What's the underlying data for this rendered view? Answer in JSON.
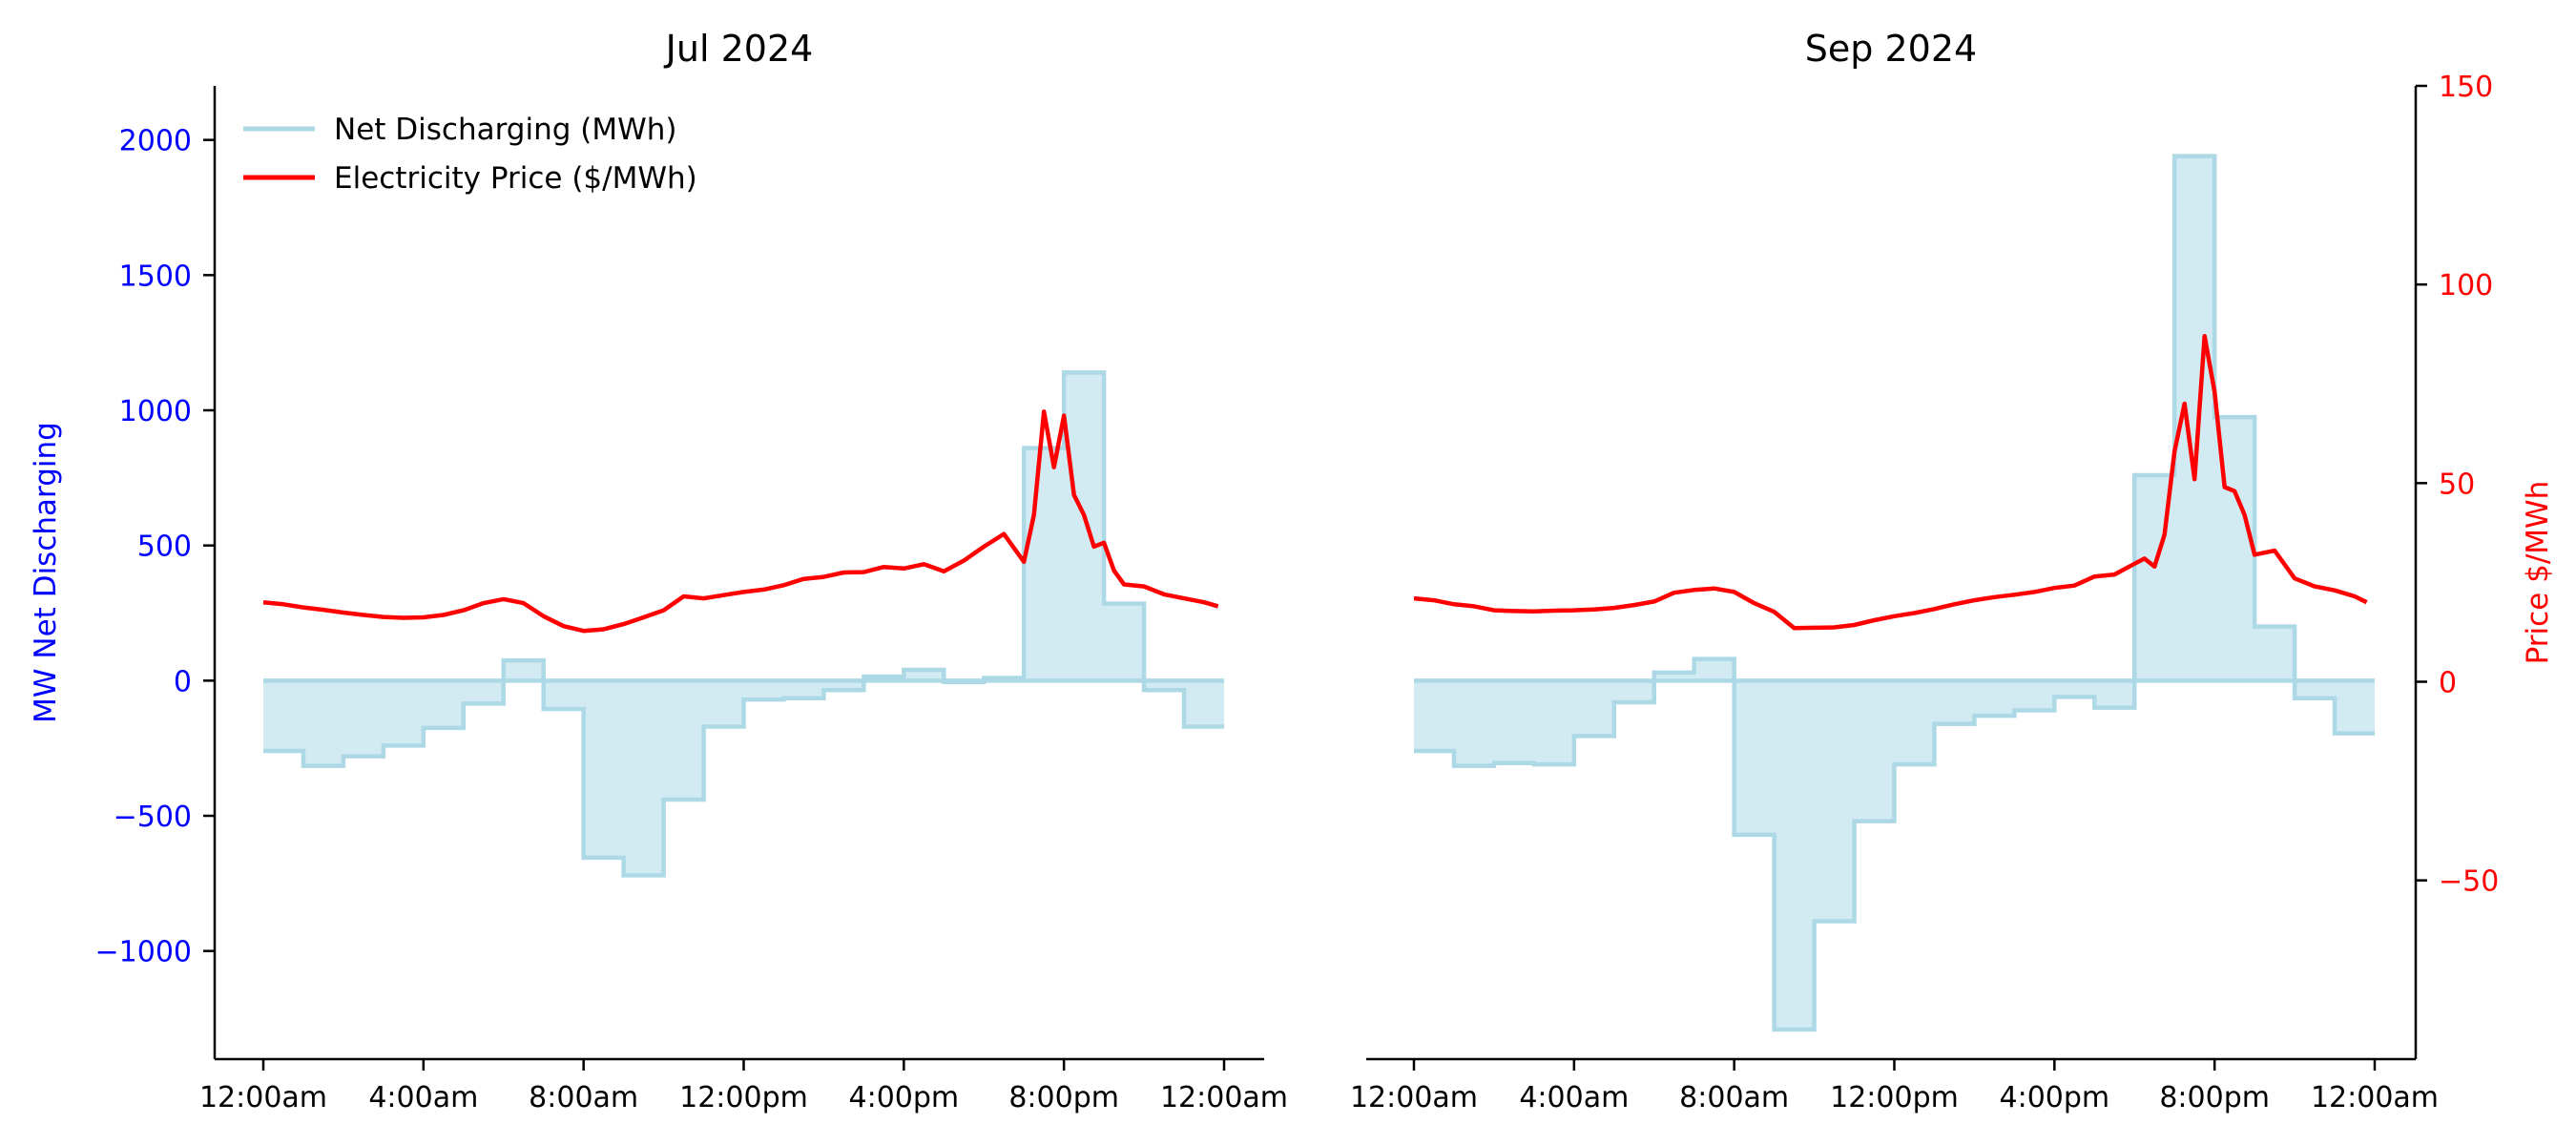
{
  "chart_data": {
    "type": "area-step-with-line",
    "left_axis": {
      "label": "MW Net Discharging",
      "color": "#0000ff",
      "range": [
        -1400,
        2200
      ],
      "ticks": [
        -1000,
        -500,
        0,
        500,
        1000,
        1500,
        2000
      ],
      "tick_labels": [
        "−1000",
        "−500",
        "0",
        "500",
        "1000",
        "1500",
        "2000"
      ]
    },
    "right_axis": {
      "label": "Price $/MWh",
      "color": "#ff0000",
      "range": [
        -95,
        150
      ],
      "ticks": [
        -50,
        0,
        50,
        100,
        150
      ],
      "tick_labels": [
        "−50",
        "0",
        "50",
        "100",
        "150"
      ]
    },
    "x_axis": {
      "range_hours": [
        -1,
        25
      ],
      "ticks": [
        0,
        4,
        8,
        12,
        16,
        20,
        24
      ],
      "tick_labels": [
        "12:00am",
        "4:00am",
        "8:00am",
        "12:00pm",
        "4:00pm",
        "8:00pm",
        "12:00am"
      ]
    },
    "legend": {
      "position": "top-left",
      "entries": [
        {
          "label": "Net Discharging (MWh)",
          "color": "#add8e6"
        },
        {
          "label": "Electricity Price ($/MWh)",
          "color": "#ff0000"
        }
      ]
    },
    "grid": false,
    "panels": [
      {
        "title": "Jul 2024",
        "discharging_hourly": [
          -260,
          -315,
          -280,
          -240,
          -175,
          -85,
          75,
          -105,
          -655,
          -720,
          -440,
          -170,
          -70,
          -65,
          -35,
          15,
          40,
          -5,
          10,
          860,
          1140,
          285,
          -35,
          -170
        ],
        "price_x": [
          0,
          0.5,
          1,
          1.5,
          2,
          2.5,
          3,
          3.5,
          4,
          4.5,
          5,
          5.5,
          6,
          6.5,
          7,
          7.5,
          8,
          8.5,
          9,
          9.5,
          10,
          10.5,
          11,
          11.5,
          12,
          12.5,
          13,
          13.5,
          14,
          14.5,
          15,
          15.5,
          16,
          16.5,
          17,
          17.5,
          18,
          18.5,
          19,
          19.25,
          19.5,
          19.75,
          20,
          20.25,
          20.5,
          20.75,
          21,
          21.25,
          21.5,
          22,
          22.5,
          23,
          23.5,
          23.85
        ],
        "price_y": [
          20,
          19.5,
          18.7,
          18.1,
          17.4,
          16.8,
          16.3,
          16.1,
          16.2,
          16.8,
          18.0,
          19.8,
          20.8,
          19.8,
          16.5,
          14.0,
          12.8,
          13.2,
          14.5,
          16.2,
          18.0,
          21.5,
          21.0,
          21.8,
          22.6,
          23.2,
          24.3,
          25.9,
          26.4,
          27.5,
          27.6,
          28.9,
          28.5,
          29.6,
          27.8,
          30.5,
          34.0,
          37.2,
          30.2,
          42.0,
          68.0,
          54.0,
          67.0,
          47.0,
          42.0,
          34.0,
          35.0,
          28.0,
          24.5,
          24.0,
          22.0,
          21.0,
          20.0,
          19.0
        ]
      },
      {
        "title": "Sep 2024",
        "discharging_hourly": [
          -260,
          -315,
          -305,
          -310,
          -205,
          -80,
          30,
          80,
          -570,
          -1290,
          -890,
          -520,
          -310,
          -160,
          -130,
          -110,
          -60,
          -100,
          760,
          1940,
          975,
          200,
          -65,
          -195
        ],
        "price_x": [
          0,
          0.5,
          1,
          1.5,
          2,
          2.5,
          3,
          3.5,
          4,
          4.5,
          5,
          5.5,
          6,
          6.5,
          7,
          7.5,
          8,
          8.5,
          9,
          9.5,
          10,
          10.5,
          11,
          11.5,
          12,
          12.5,
          13,
          13.5,
          14,
          14.5,
          15,
          15.5,
          16,
          16.5,
          17,
          17.5,
          18,
          18.25,
          18.5,
          18.75,
          19,
          19.25,
          19.5,
          19.75,
          20,
          20.25,
          20.5,
          20.75,
          21,
          21.5,
          22,
          22.5,
          23,
          23.5,
          23.8
        ],
        "price_y": [
          21,
          20.5,
          19.5,
          19.0,
          18.0,
          17.8,
          17.7,
          17.9,
          18.0,
          18.2,
          18.6,
          19.3,
          20.2,
          22.4,
          23.1,
          23.5,
          22.6,
          19.8,
          17.6,
          13.5,
          13.6,
          13.7,
          14.3,
          15.5,
          16.5,
          17.3,
          18.3,
          19.5,
          20.5,
          21.3,
          21.9,
          22.6,
          23.6,
          24.2,
          26.5,
          27.0,
          29.7,
          31.0,
          29.0,
          37.0,
          58.0,
          70.0,
          51.0,
          87.0,
          73.0,
          49.0,
          48.0,
          42.0,
          32.0,
          33.0,
          26.0,
          24.0,
          23.0,
          21.5,
          20.0
        ]
      }
    ]
  }
}
